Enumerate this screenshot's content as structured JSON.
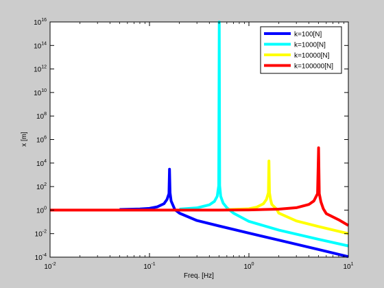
{
  "chart_data": {
    "type": "line",
    "title": "",
    "xlabel": "Freq. [Hz]",
    "ylabel": "x [m]",
    "xscale": "log",
    "yscale": "log",
    "xlim": [
      0.01,
      10
    ],
    "ylim": [
      0.0001,
      1e+16
    ],
    "xticks": [
      {
        "value": 0.01,
        "base": "10",
        "exp": "-2"
      },
      {
        "value": 0.1,
        "base": "10",
        "exp": "-1"
      },
      {
        "value": 1,
        "base": "10",
        "exp": "0"
      },
      {
        "value": 10,
        "base": "10",
        "exp": "1"
      }
    ],
    "yticks": [
      {
        "value": 0.0001,
        "base": "10",
        "exp": "-4"
      },
      {
        "value": 0.01,
        "base": "10",
        "exp": "-2"
      },
      {
        "value": 1,
        "base": "10",
        "exp": "0"
      },
      {
        "value": 100,
        "base": "10",
        "exp": "2"
      },
      {
        "value": 10000,
        "base": "10",
        "exp": "4"
      },
      {
        "value": 1000000,
        "base": "10",
        "exp": "6"
      },
      {
        "value": 100000000,
        "base": "10",
        "exp": "8"
      },
      {
        "value": 10000000000,
        "base": "10",
        "exp": "10"
      },
      {
        "value": 1000000000000,
        "base": "10",
        "exp": "12"
      },
      {
        "value": 100000000000000,
        "base": "10",
        "exp": "14"
      },
      {
        "value": 10000000000000000,
        "base": "10",
        "exp": "16"
      }
    ],
    "grid": false,
    "legend_position": "top-right",
    "series": [
      {
        "name": "k=100[N]",
        "color": "#0000ff",
        "points": [
          [
            0.05,
            1.12
          ],
          [
            0.08,
            1.25
          ],
          [
            0.1,
            1.4
          ],
          [
            0.12,
            1.9
          ],
          [
            0.14,
            3.5
          ],
          [
            0.15,
            8
          ],
          [
            0.157,
            25
          ],
          [
            0.159,
            3000
          ],
          [
            0.161,
            30
          ],
          [
            0.165,
            6
          ],
          [
            0.18,
            1.1
          ],
          [
            0.2,
            0.55
          ],
          [
            0.3,
            0.13
          ],
          [
            0.5,
            0.045
          ],
          [
            1,
            0.011
          ],
          [
            2,
            0.0028
          ],
          [
            5,
            0.00045
          ],
          [
            10,
            0.00011
          ]
        ]
      },
      {
        "name": "k=1000[N]",
        "color": "#00ffff",
        "points": [
          [
            0.2,
            1.2
          ],
          [
            0.3,
            1.55
          ],
          [
            0.4,
            2.8
          ],
          [
            0.45,
            5.5
          ],
          [
            0.48,
            15
          ],
          [
            0.497,
            120
          ],
          [
            0.503,
            1e+16
          ],
          [
            0.508,
            120
          ],
          [
            0.52,
            15
          ],
          [
            0.55,
            4
          ],
          [
            0.6,
            1.6
          ],
          [
            0.7,
            0.55
          ],
          [
            1,
            0.11
          ],
          [
            2,
            0.02
          ],
          [
            5,
            0.0033
          ],
          [
            10,
            0.0009
          ]
        ]
      },
      {
        "name": "k=10000[N]",
        "color": "#ffff00",
        "points": [
          [
            0.6,
            1.1
          ],
          [
            1,
            1.3
          ],
          [
            1.2,
            1.8
          ],
          [
            1.4,
            3.5
          ],
          [
            1.5,
            8
          ],
          [
            1.57,
            30
          ],
          [
            1.59,
            15000
          ],
          [
            1.61,
            30
          ],
          [
            1.65,
            8
          ],
          [
            1.7,
            3
          ],
          [
            1.9,
            1.2
          ],
          [
            2,
            0.55
          ],
          [
            3,
            0.12
          ],
          [
            5,
            0.04
          ],
          [
            10,
            0.01
          ]
        ]
      },
      {
        "name": "k=100000[N]",
        "color": "#ff0000",
        "points": [
          [
            0.01,
            1
          ],
          [
            0.1,
            1
          ],
          [
            0.5,
            1
          ],
          [
            1,
            1.04
          ],
          [
            2,
            1.2
          ],
          [
            3,
            1.6
          ],
          [
            4,
            3
          ],
          [
            4.5,
            6
          ],
          [
            4.9,
            25
          ],
          [
            5.02,
            200000
          ],
          [
            5.1,
            25
          ],
          [
            5.3,
            5
          ],
          [
            5.6,
            1.3
          ],
          [
            6,
            0.5
          ],
          [
            8,
            0.15
          ],
          [
            10,
            0.05
          ]
        ]
      }
    ]
  }
}
